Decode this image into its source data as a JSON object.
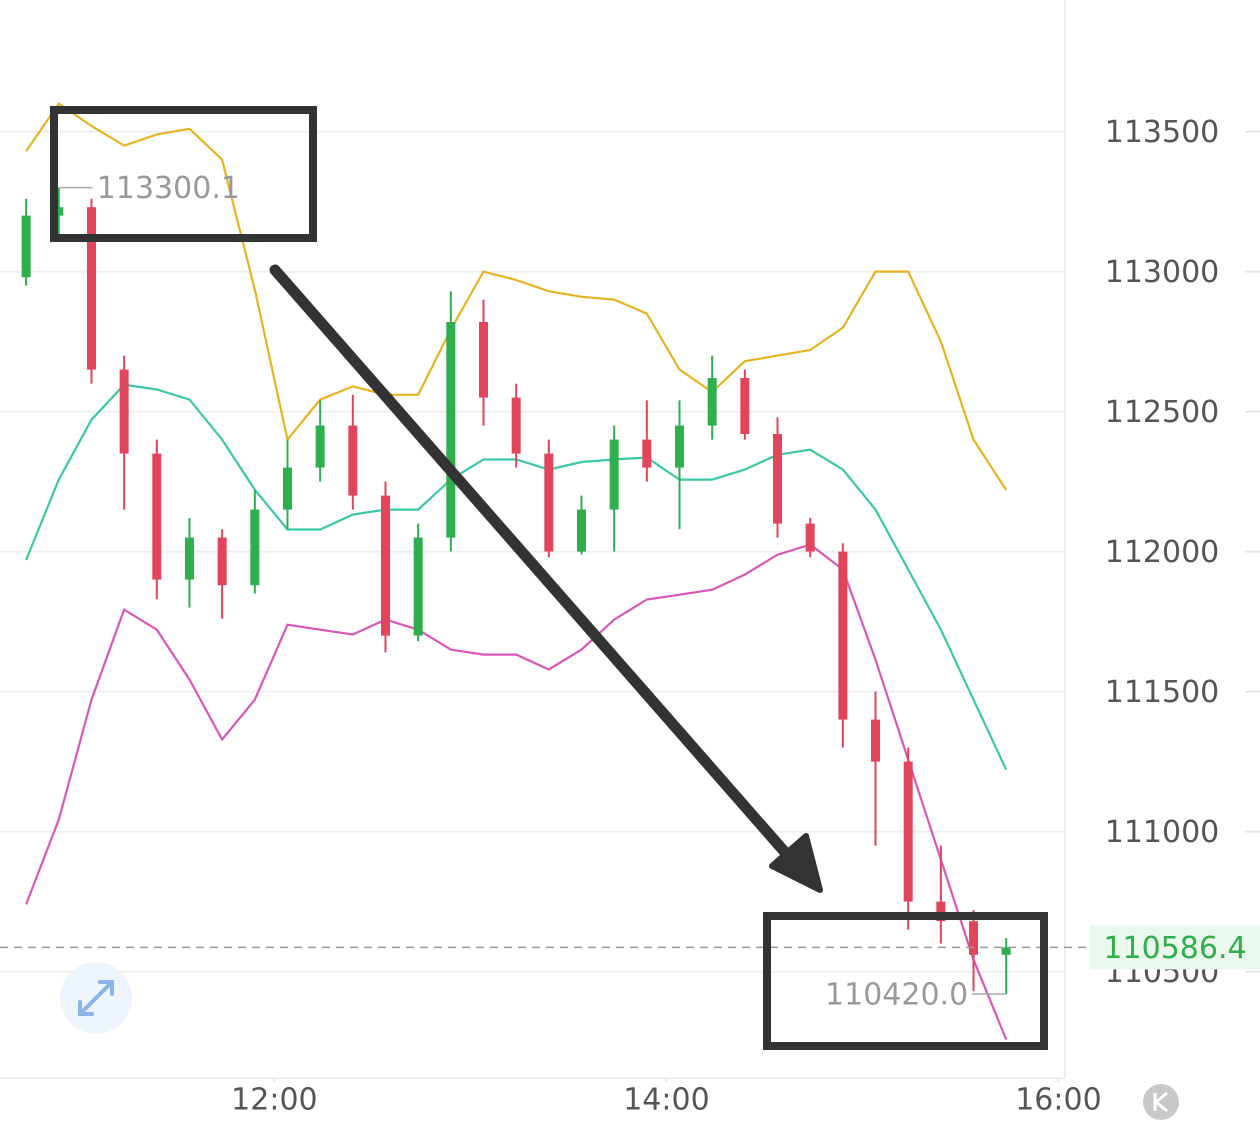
{
  "chart_data": {
    "type": "candlestick",
    "x": [
      644,
      654,
      664,
      674,
      684,
      694,
      704,
      714,
      724,
      734,
      744,
      754,
      764,
      774,
      784,
      794,
      804,
      814,
      824,
      834,
      844,
      854,
      864,
      874,
      884,
      894,
      904,
      914,
      924,
      934,
      944
    ],
    "open": [
      112980,
      113200,
      113230,
      112650,
      112350,
      111900,
      112050,
      111880,
      112150,
      112300,
      112450,
      112200,
      111700,
      112050,
      112820,
      112550,
      112350,
      112000,
      112150,
      112400,
      112300,
      112450,
      112620,
      112420,
      112100,
      112000,
      111400,
      111250,
      110750,
      110680,
      110560
    ],
    "high": [
      113260,
      113300.1,
      113260,
      112700,
      112400,
      112120,
      112080,
      112220,
      112400,
      112540,
      112560,
      112250,
      112100,
      112930,
      112900,
      112600,
      112400,
      112200,
      112450,
      112540,
      112540,
      112700,
      112650,
      112480,
      112120,
      112030,
      111500,
      111300,
      110950,
      110720,
      110620
    ],
    "low": [
      112950,
      113120,
      112600,
      112150,
      111830,
      111800,
      111760,
      111850,
      112080,
      112250,
      112150,
      111640,
      111680,
      112000,
      112450,
      112300,
      111980,
      111990,
      112000,
      112250,
      112080,
      112400,
      112400,
      112050,
      111980,
      111300,
      110950,
      110650,
      110600,
      110430,
      110420
    ],
    "close": [
      113200,
      113230,
      112650,
      112350,
      111900,
      112050,
      111880,
      112150,
      112300,
      112450,
      112200,
      111700,
      112050,
      112820,
      112550,
      112350,
      112000,
      112150,
      112400,
      112300,
      112450,
      112620,
      112420,
      112100,
      112000,
      111400,
      111250,
      110750,
      110680,
      110560,
      110586.4
    ],
    "up_color": "#2fae4e",
    "down_color": "#e0455c",
    "bands": [
      {
        "color": "#e6b422",
        "values": [
          113430,
          113600,
          113520,
          113450,
          113490,
          113510,
          113400,
          112936,
          112400,
          112543,
          112590,
          112560,
          112560,
          112793,
          113000,
          112970,
          112930,
          112910,
          112900,
          112850,
          112650,
          112570,
          112680,
          112700,
          112720,
          112800,
          113000,
          113000,
          112750,
          112400,
          112220
        ]
      },
      {
        "color": "#3cc7a8",
        "values": [
          111970,
          112257,
          112471,
          112596,
          112579,
          112543,
          112400,
          112221,
          112079,
          112079,
          112132,
          112150,
          112150,
          112257,
          112329,
          112329,
          112293,
          112320,
          112329,
          112336,
          112257,
          112257,
          112293,
          112346,
          112364,
          112293,
          112150,
          111936,
          111721,
          111471,
          111221
        ]
      },
      {
        "color": "#d957b8",
        "values": [
          110740,
          111043,
          111471,
          111793,
          111721,
          111543,
          111329,
          111471,
          111739,
          111721,
          111704,
          111757,
          111721,
          111650,
          111632,
          111632,
          111579,
          111650,
          111757,
          111829,
          111846,
          111864,
          111918,
          111989,
          112025,
          111936,
          111614,
          111257,
          110900,
          110543,
          110257
        ]
      }
    ],
    "last_price": 110586.4,
    "last_price_color": "#2fae4e",
    "annotations": [
      {
        "x": 654,
        "value": 113300.1,
        "label": "113300.1",
        "side": "right"
      },
      {
        "x": 944,
        "value": 110420,
        "label": "110420.0",
        "side": "left"
      }
    ],
    "xlim": [
      636,
      962
    ],
    "xticks": [
      {
        "value": 720,
        "label": "12:00"
      },
      {
        "value": 840,
        "label": "14:00"
      },
      {
        "value": 960,
        "label": "16:00"
      }
    ],
    "ylim": [
      110120,
      113970
    ],
    "yticks": [
      110500,
      111000,
      111500,
      112000,
      112500,
      113000,
      113500
    ],
    "grid": true
  }
}
